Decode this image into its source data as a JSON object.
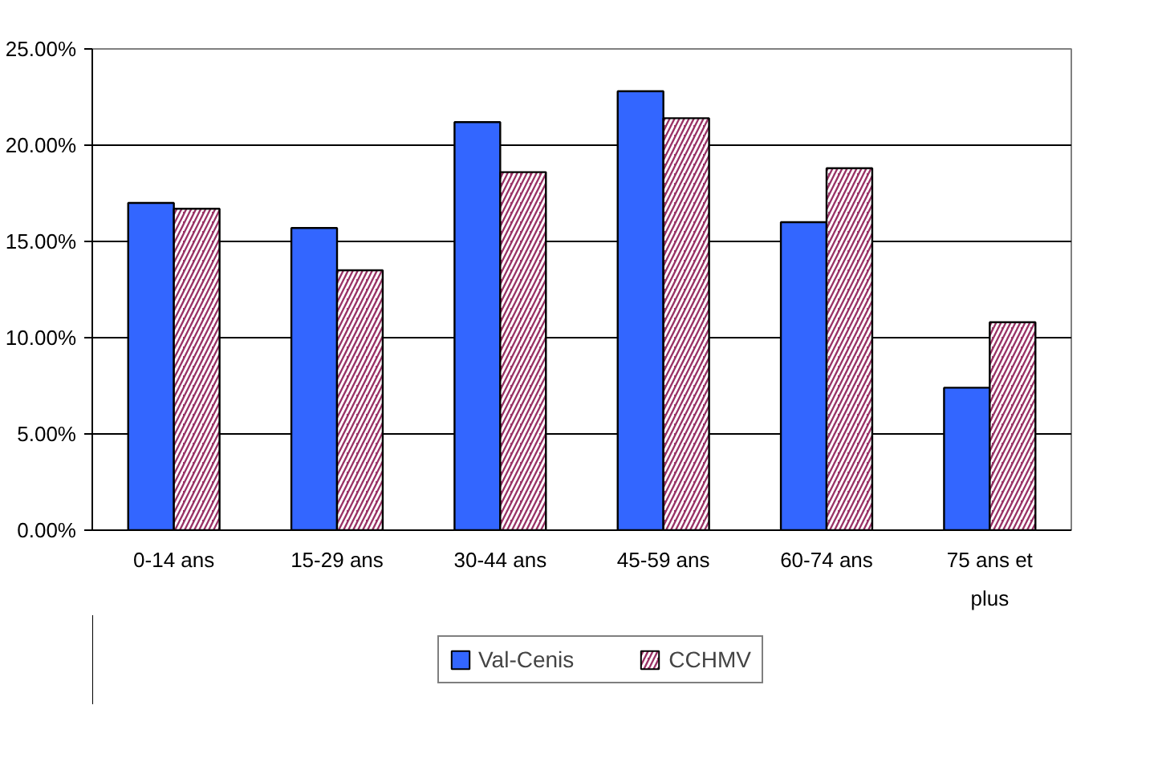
{
  "chart_data": {
    "type": "bar",
    "categories": [
      "0-14 ans",
      "15-29 ans",
      "30-44 ans",
      "45-59 ans",
      "60-74 ans",
      "75 ans et plus"
    ],
    "series": [
      {
        "name": "Val-Cenis",
        "color": "#3366ff",
        "values": [
          17.0,
          15.7,
          21.2,
          22.8,
          16.0,
          7.4
        ]
      },
      {
        "name": "CCHMV",
        "color": "#993366",
        "values": [
          16.7,
          13.5,
          18.6,
          21.4,
          18.8,
          10.8
        ]
      }
    ],
    "ylim": [
      0,
      25
    ],
    "yticks": [
      {
        "value": 0,
        "label": "0.00%"
      },
      {
        "value": 5,
        "label": "5.00%"
      },
      {
        "value": 10,
        "label": "10.00%"
      },
      {
        "value": 15,
        "label": "15.00%"
      },
      {
        "value": 20,
        "label": "20.00%"
      },
      {
        "value": 25,
        "label": "25.00%"
      }
    ],
    "grid": "y",
    "legend": "bottom"
  }
}
